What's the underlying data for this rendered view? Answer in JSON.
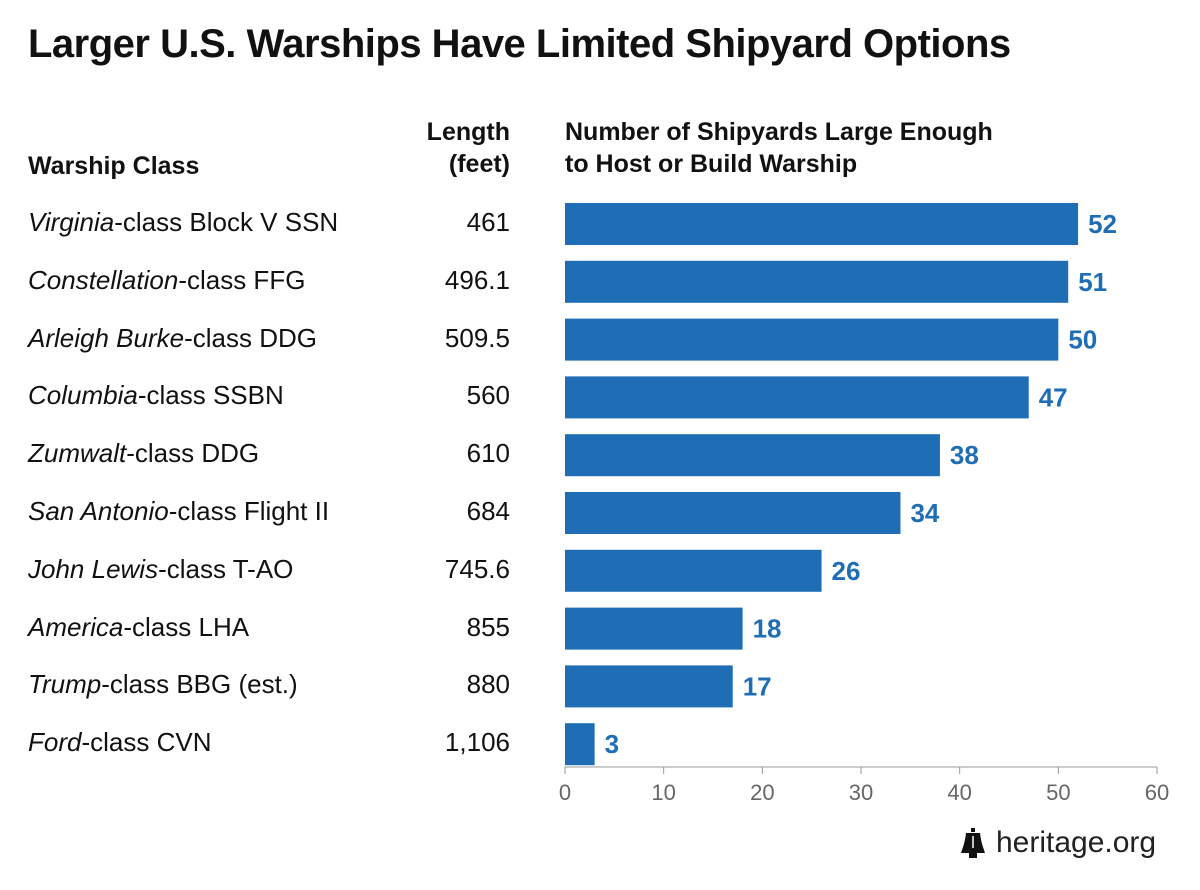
{
  "title": "Larger U.S. Warships Have Limited Shipyard Options",
  "headers": {
    "class": "Warship Class",
    "length_line1": "Length",
    "length_line2": "(feet)",
    "count_line1": "Number of Shipyards Large Enough",
    "count_line2": "to Host or Build Warship"
  },
  "chart_data": {
    "type": "bar",
    "orientation": "horizontal",
    "title": "Larger U.S. Warships Have Limited Shipyard Options",
    "xlabel": "",
    "ylabel": "",
    "xlim": [
      0,
      60
    ],
    "xticks": [
      0,
      10,
      20,
      30,
      40,
      50,
      60
    ],
    "bar_color": "#1f6db5",
    "label_color": "#1f6db5",
    "grid": false,
    "categories": [
      {
        "italic": "Virginia",
        "rest": "-class Block V SSN",
        "length": "461"
      },
      {
        "italic": "Constellation",
        "rest": "-class FFG",
        "length": "496.1"
      },
      {
        "italic": "Arleigh Burke",
        "rest": "-class DDG",
        "length": "509.5"
      },
      {
        "italic": "Columbia",
        "rest": "-class SSBN",
        "length": "560"
      },
      {
        "italic": "Zumwalt",
        "rest": "-class DDG",
        "length": "610"
      },
      {
        "italic": "San Antonio",
        "rest": "-class Flight II",
        "length": "684"
      },
      {
        "italic": "John Lewis",
        "rest": "-class T-AO",
        "length": "745.6"
      },
      {
        "italic": "America",
        "rest": "-class LHA",
        "length": "855"
      },
      {
        "italic": "Trump",
        "rest": "-class BBG (est.)",
        "length": "880"
      },
      {
        "italic": "Ford",
        "rest": "-class CVN",
        "length": "1,106"
      }
    ],
    "values": [
      52,
      51,
      50,
      47,
      38,
      34,
      26,
      18,
      17,
      3
    ]
  },
  "logo": {
    "text": "heritage.org",
    "icon": "liberty-bell-icon"
  }
}
